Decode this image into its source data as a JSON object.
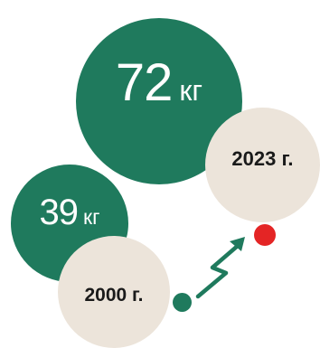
{
  "infographic": {
    "current": {
      "value": "72",
      "unit": "кг",
      "year": "2023 г."
    },
    "past": {
      "value": "39",
      "unit": "кг",
      "year": "2000 г."
    },
    "colors": {
      "green": "#1f7a5d",
      "beige": "#ece4da",
      "red": "#e42525",
      "text_dark": "#1a1a1a"
    },
    "icons": [
      "growth-arrow-icon"
    ]
  }
}
